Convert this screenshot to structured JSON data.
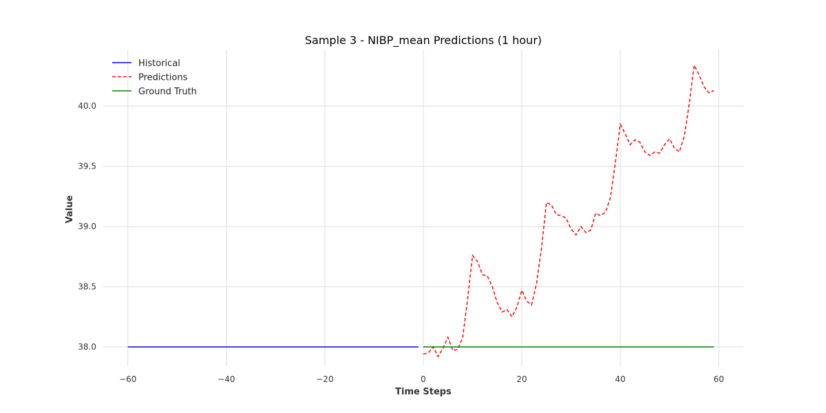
{
  "chart_data": {
    "type": "line",
    "title": "Sample 3 - NIBP_mean Predictions (1 hour)",
    "xlabel": "Time Steps",
    "ylabel": "Value",
    "xlim": [
      -65,
      65
    ],
    "ylim": [
      37.84,
      40.47
    ],
    "xticks": [
      -60,
      -40,
      -20,
      0,
      20,
      40,
      60
    ],
    "yticks": [
      38.0,
      38.5,
      39.0,
      39.5,
      40.0
    ],
    "grid": true,
    "legend_position": "top-left",
    "series": [
      {
        "name": "Historical",
        "color": "#0000ff",
        "style": "solid",
        "x": [
          -60,
          -1
        ],
        "y": [
          38.0,
          38.0
        ]
      },
      {
        "name": "Predictions",
        "color": "#ff0000",
        "style": "dashed",
        "x": [
          0,
          1,
          2,
          3,
          4,
          5,
          6,
          7,
          8,
          9,
          10,
          11,
          12,
          13,
          14,
          15,
          16,
          17,
          18,
          19,
          20,
          21,
          22,
          23,
          24,
          25,
          26,
          27,
          28,
          29,
          30,
          31,
          32,
          33,
          34,
          35,
          36,
          37,
          38,
          39,
          40,
          41,
          42,
          43,
          44,
          45,
          46,
          47,
          48,
          49,
          50,
          51,
          52,
          53,
          54,
          55,
          56,
          57,
          58,
          59
        ],
        "y": [
          37.94,
          37.95,
          38.0,
          37.92,
          37.99,
          38.08,
          37.97,
          37.98,
          38.08,
          38.4,
          38.76,
          38.71,
          38.6,
          38.59,
          38.5,
          38.37,
          38.29,
          38.31,
          38.25,
          38.33,
          38.47,
          38.38,
          38.35,
          38.53,
          38.82,
          39.2,
          39.18,
          39.1,
          39.09,
          39.07,
          38.98,
          38.93,
          39.0,
          38.95,
          38.97,
          39.11,
          39.09,
          39.12,
          39.24,
          39.53,
          39.85,
          39.77,
          39.68,
          39.72,
          39.7,
          39.62,
          39.59,
          39.62,
          39.61,
          39.68,
          39.73,
          39.65,
          39.62,
          39.75,
          40.02,
          40.34,
          40.26,
          40.16,
          40.11,
          40.13
        ]
      },
      {
        "name": "Ground Truth",
        "color": "#008000",
        "style": "solid",
        "x": [
          0,
          59
        ],
        "y": [
          38.0,
          38.0
        ]
      }
    ]
  }
}
